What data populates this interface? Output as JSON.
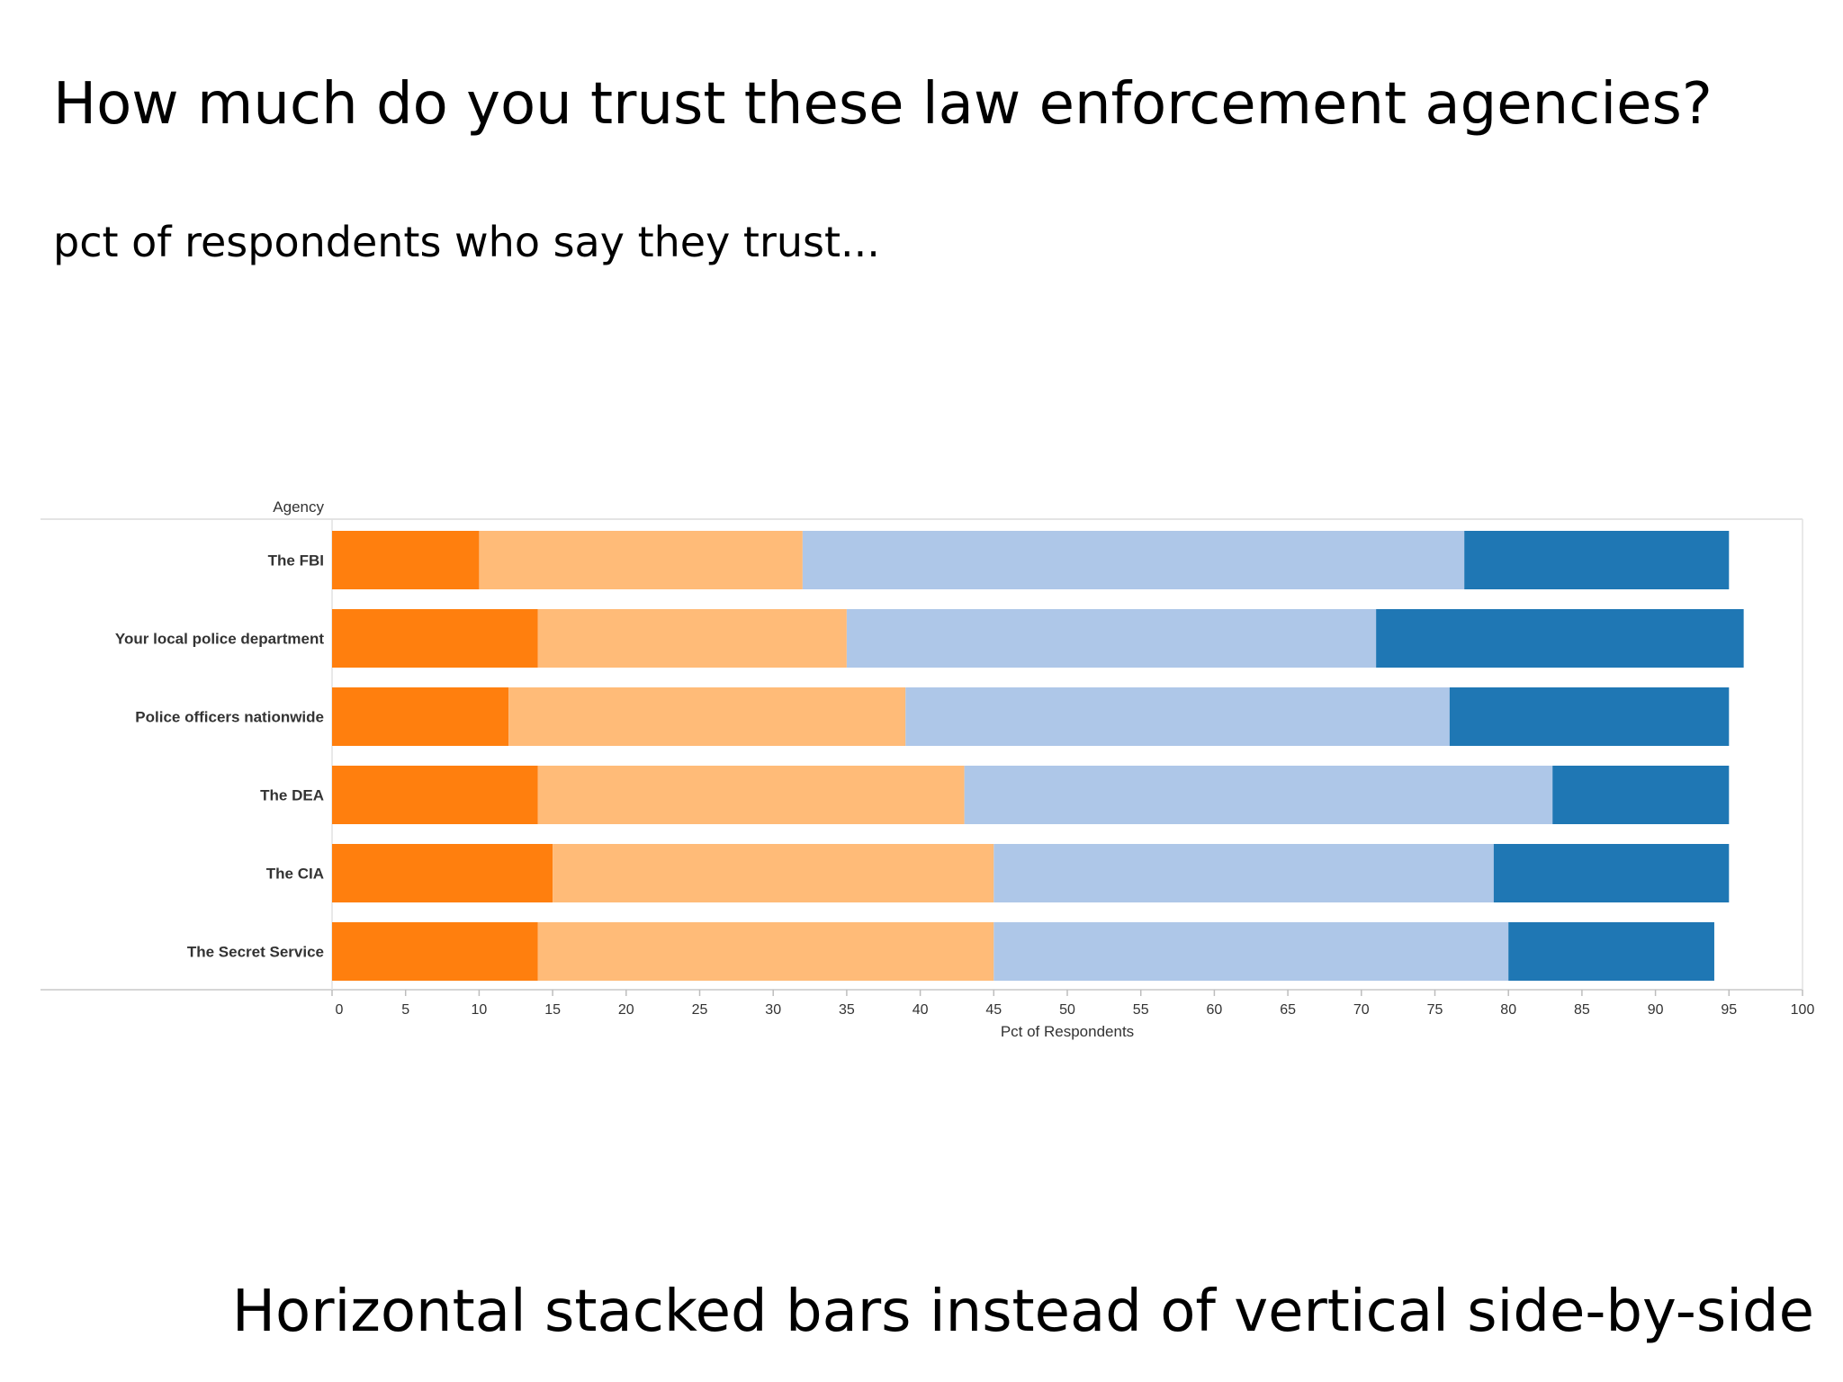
{
  "slide": {
    "title": "How much do you trust these law enforcement agencies?",
    "subtitle": "pct of respondents who say they trust...",
    "caption": "Horizontal stacked bars instead of vertical side-by-side"
  },
  "chart_data": {
    "type": "bar",
    "orientation": "horizontal",
    "stacked": true,
    "ylabel": "Agency",
    "xlabel": "Pct of Respondents",
    "xlim": [
      0,
      100
    ],
    "xticks": [
      0,
      5,
      10,
      15,
      20,
      25,
      30,
      35,
      40,
      45,
      50,
      55,
      60,
      65,
      70,
      75,
      80,
      85,
      90,
      95,
      100
    ],
    "grid": false,
    "categories": [
      "The FBI",
      "Your local police department",
      "Police officers nationwide",
      "The DEA",
      "The CIA",
      "The Secret Service"
    ],
    "series": [
      {
        "color": "#ff7f0e",
        "values": [
          10,
          14,
          12,
          14,
          15,
          14
        ]
      },
      {
        "color": "#ffbb78",
        "values": [
          22,
          21,
          27,
          29,
          30,
          31
        ]
      },
      {
        "color": "#aec7e8",
        "values": [
          45,
          36,
          37,
          40,
          34,
          35
        ]
      },
      {
        "color": "#1f77b4",
        "values": [
          18,
          25,
          19,
          12,
          16,
          14
        ]
      }
    ]
  }
}
